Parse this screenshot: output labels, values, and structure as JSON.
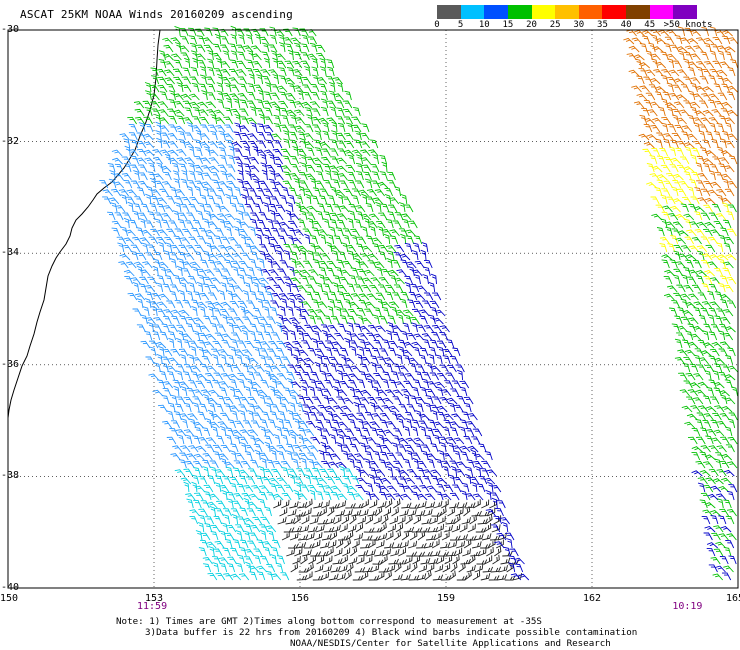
{
  "title": "ASCAT 25KM NOAA Winds 20160209 ascending",
  "speed_scale": {
    "labels": [
      "0",
      "5",
      "10",
      "15",
      "20",
      "25",
      "30",
      "35",
      "40",
      "45",
      ">50 knots"
    ],
    "colors": [
      "#5a5a5a",
      "#00c0ff",
      "#0050ff",
      "#00c000",
      "#ffff00",
      "#ffc000",
      "#ff6000",
      "#ff0000",
      "#804000",
      "#ff00ff",
      "#8000c0"
    ]
  },
  "map": {
    "lon_labels": [
      "150",
      "153",
      "156",
      "159",
      "162",
      "165"
    ],
    "lat_labels": [
      "-30",
      "-32",
      "-34",
      "-36",
      "-38",
      "-40"
    ],
    "lon_range": [
      150,
      165
    ],
    "lat_range": [
      -40,
      -30
    ],
    "times": [
      {
        "label": "11:59",
        "lon": 153
      },
      {
        "label": "10:19",
        "lon": 164
      }
    ],
    "barb_colors": {
      "blue": "#0000c8",
      "light_blue": "#2896ff",
      "cyan": "#00d0e0",
      "green": "#00c000",
      "yellow": "#ffff00",
      "orange": "#e07000",
      "black": "#202020",
      "coast": "#000000"
    }
  },
  "notes": [
    "Note: 1) Times are GMT 2)Times along bottom correspond to measurement at -35S",
    "3)Data buffer is 22 hrs from 20160209 4) Black wind barbs indicate possible contamination",
    "NOAA/NESDIS/Center for Satellite Applications and Research"
  ]
}
